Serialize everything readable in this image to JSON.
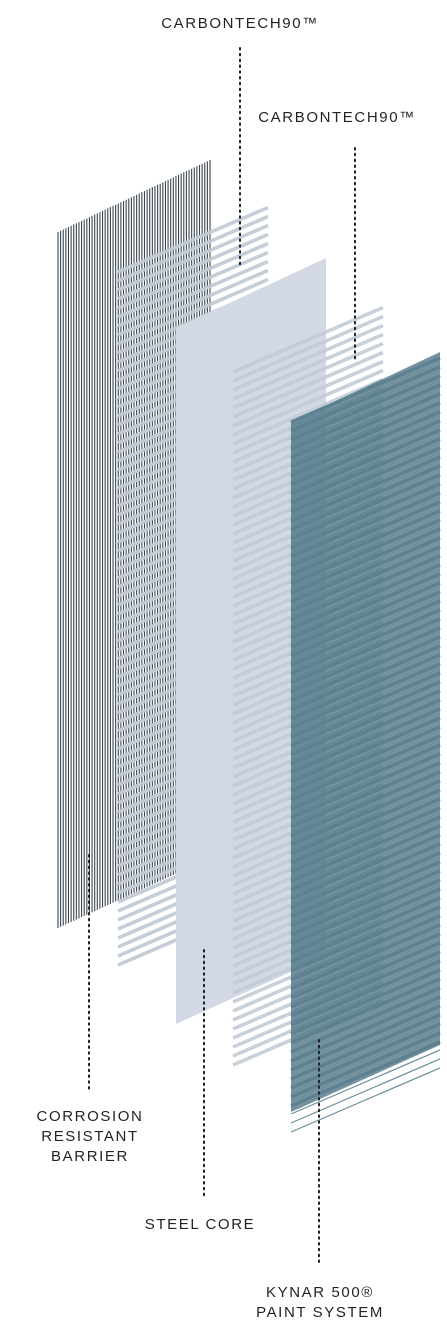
{
  "labels": {
    "top_left": "CARBONTECH90™",
    "top_right": "CARBONTECH90™",
    "corrosion": [
      "CORROSION",
      "RESISTANT",
      "BARRIER"
    ],
    "steel_core": "STEEL CORE",
    "kynar": [
      "KYNAR  500®",
      "PAINT SYSTEM"
    ]
  },
  "colors": {
    "barrier_lines": "#3a4652",
    "carbontech_lines": "#c2cbd6",
    "steel_panel": "#d3d8e5",
    "kynar_lines": "#5d8190",
    "kynar_fill": "#4c7381",
    "leader_dots": "#1f2328"
  }
}
